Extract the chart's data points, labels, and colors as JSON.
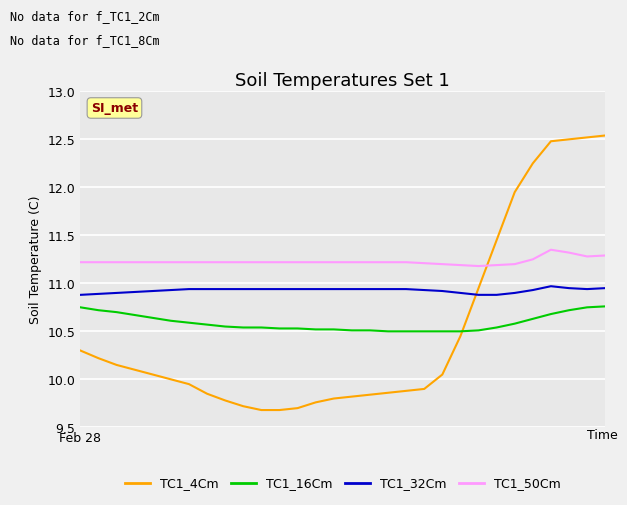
{
  "title": "Soil Temperatures Set 1",
  "ylabel": "Soil Temperature (C)",
  "xlabel": "Time",
  "ylim": [
    9.5,
    13.0
  ],
  "header_text_line1": "No data for f_TC1_2Cm",
  "header_text_line2": "No data for f_TC1_8Cm",
  "annotation_box": "SI_met",
  "x_label_start": "Feb 28",
  "legend_entries": [
    "TC1_4Cm",
    "TC1_16Cm",
    "TC1_32Cm",
    "TC1_50Cm"
  ],
  "colors": {
    "TC1_4Cm": "#FFA500",
    "TC1_16Cm": "#00CC00",
    "TC1_32Cm": "#0000CC",
    "TC1_50Cm": "#FF99FF"
  },
  "n_points": 30,
  "TC1_4Cm": [
    10.3,
    10.22,
    10.15,
    10.1,
    10.05,
    10.0,
    9.95,
    9.85,
    9.78,
    9.72,
    9.68,
    9.68,
    9.7,
    9.76,
    9.8,
    9.82,
    9.84,
    9.86,
    9.88,
    9.9,
    10.05,
    10.45,
    10.95,
    11.45,
    11.95,
    12.25,
    12.48,
    12.5,
    12.52,
    12.54
  ],
  "TC1_16Cm": [
    10.75,
    10.72,
    10.7,
    10.67,
    10.64,
    10.61,
    10.59,
    10.57,
    10.55,
    10.54,
    10.54,
    10.53,
    10.53,
    10.52,
    10.52,
    10.51,
    10.51,
    10.5,
    10.5,
    10.5,
    10.5,
    10.5,
    10.51,
    10.54,
    10.58,
    10.63,
    10.68,
    10.72,
    10.75,
    10.76
  ],
  "TC1_32Cm": [
    10.88,
    10.89,
    10.9,
    10.91,
    10.92,
    10.93,
    10.94,
    10.94,
    10.94,
    10.94,
    10.94,
    10.94,
    10.94,
    10.94,
    10.94,
    10.94,
    10.94,
    10.94,
    10.94,
    10.93,
    10.92,
    10.9,
    10.88,
    10.88,
    10.9,
    10.93,
    10.97,
    10.95,
    10.94,
    10.95
  ],
  "TC1_50Cm": [
    11.22,
    11.22,
    11.22,
    11.22,
    11.22,
    11.22,
    11.22,
    11.22,
    11.22,
    11.22,
    11.22,
    11.22,
    11.22,
    11.22,
    11.22,
    11.22,
    11.22,
    11.22,
    11.22,
    11.21,
    11.2,
    11.19,
    11.18,
    11.19,
    11.2,
    11.25,
    11.35,
    11.32,
    11.28,
    11.29
  ],
  "background_color": "#f0f0f0",
  "plot_bg_color": "#e8e8e8",
  "grid_color": "#ffffff",
  "title_fontsize": 13,
  "axis_label_fontsize": 9,
  "tick_fontsize": 9,
  "legend_fontsize": 9
}
